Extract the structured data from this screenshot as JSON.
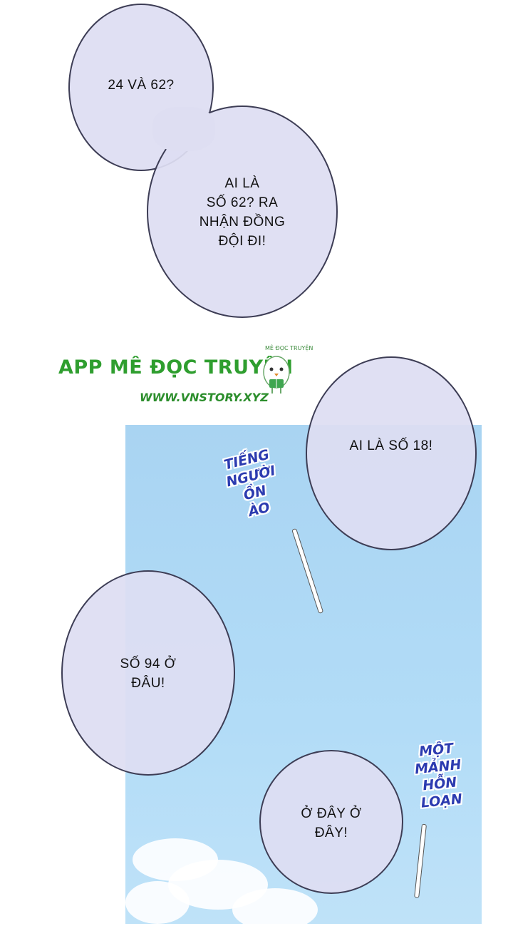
{
  "bubbles": {
    "b1": "24 VÀ 62?",
    "b2": [
      "AI LÀ",
      "SỐ 62? RA",
      "NHẬN ĐỒNG",
      "ĐỘI ĐI!"
    ],
    "b3": "AI LÀ SỐ 18!",
    "b4": [
      "SỐ 94 Ở",
      "ĐÂU!"
    ],
    "b5": [
      "Ở ĐÂY Ở",
      "ĐÂY!"
    ]
  },
  "sfx": {
    "noise": [
      "TIẾNG",
      "NGƯỜI",
      "ỒN",
      "ÀO"
    ],
    "chaos": [
      "MỘT",
      "MẢNH",
      "HỖN",
      "LOẠN"
    ]
  },
  "watermark": {
    "title": "APP MÊ ĐỌC TRUYỆN",
    "url": "WWW.VNSTORY.XYZ",
    "small": "MÊ ĐỌC TRUYỆN"
  },
  "colors": {
    "bubble": "#dedef2",
    "sky": "#b2dcf7",
    "sfx": "#2c3bb0",
    "logo": "#2f9e2f"
  }
}
